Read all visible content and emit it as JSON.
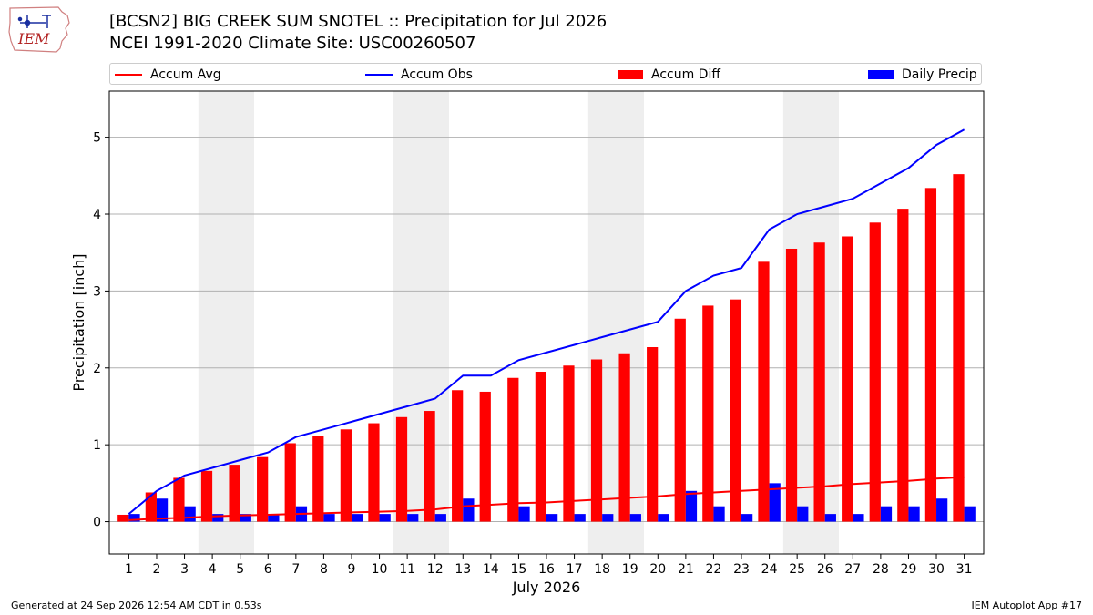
{
  "header": {
    "title": "[BCSN2] BIG CREEK SUM SNOTEL :: Precipitation for Jul 2026",
    "subtitle": "NCEI 1991-2020 Climate Site: USC00260507",
    "logo_text": "IEM"
  },
  "legend": [
    {
      "label": "Accum Avg",
      "kind": "line",
      "color": "#ff0000"
    },
    {
      "label": "Accum Obs",
      "kind": "line",
      "color": "#0000ff"
    },
    {
      "label": "Accum Diff",
      "kind": "bar",
      "color": "#ff0000"
    },
    {
      "label": "Daily Precip",
      "kind": "bar",
      "color": "#0000ff"
    }
  ],
  "chart_data": {
    "type": "bar",
    "xlabel": "July 2026",
    "ylabel": "Precipitation [inch]",
    "ylim": [
      -0.42,
      5.6
    ],
    "yticks": [
      0,
      1,
      2,
      3,
      4,
      5
    ],
    "categories": [
      "1",
      "2",
      "3",
      "4",
      "5",
      "6",
      "7",
      "8",
      "9",
      "10",
      "11",
      "12",
      "13",
      "14",
      "15",
      "16",
      "17",
      "18",
      "19",
      "20",
      "21",
      "22",
      "23",
      "24",
      "25",
      "26",
      "27",
      "28",
      "29",
      "30",
      "31"
    ],
    "weekend_shading_days": [
      [
        4,
        5
      ],
      [
        11,
        12
      ],
      [
        18,
        19
      ],
      [
        25,
        26
      ]
    ],
    "grid": "horizontal",
    "series": [
      {
        "name": "Accum Avg",
        "kind": "line",
        "color": "#ff0000",
        "values": [
          0.02,
          0.04,
          0.05,
          0.07,
          0.08,
          0.09,
          0.1,
          0.11,
          0.12,
          0.13,
          0.14,
          0.16,
          0.2,
          0.22,
          0.24,
          0.25,
          0.27,
          0.29,
          0.31,
          0.33,
          0.36,
          0.38,
          0.4,
          0.42,
          0.44,
          0.46,
          0.49,
          0.51,
          0.53,
          0.56,
          0.58
        ]
      },
      {
        "name": "Accum Obs",
        "kind": "line",
        "color": "#0000ff",
        "values": [
          0.1,
          0.4,
          0.6,
          0.7,
          0.8,
          0.9,
          1.1,
          1.2,
          1.3,
          1.4,
          1.5,
          1.6,
          1.9,
          1.9,
          2.1,
          2.2,
          2.3,
          2.4,
          2.5,
          2.6,
          3.0,
          3.2,
          3.3,
          3.8,
          4.0,
          4.1,
          4.2,
          4.4,
          4.6,
          4.9,
          5.1
        ]
      },
      {
        "name": "Accum Diff",
        "kind": "bar",
        "color": "#ff0000",
        "values": [
          0.09,
          0.38,
          0.57,
          0.66,
          0.74,
          0.84,
          1.02,
          1.11,
          1.2,
          1.28,
          1.36,
          1.44,
          1.71,
          1.69,
          1.87,
          1.95,
          2.03,
          2.11,
          2.19,
          2.27,
          2.64,
          2.81,
          2.89,
          3.38,
          3.55,
          3.63,
          3.71,
          3.89,
          4.07,
          4.34,
          4.52
        ]
      },
      {
        "name": "Daily Precip",
        "kind": "bar",
        "color": "#0000ff",
        "values": [
          0.1,
          0.3,
          0.2,
          0.1,
          0.1,
          0.1,
          0.2,
          0.1,
          0.1,
          0.1,
          0.1,
          0.1,
          0.3,
          0.0,
          0.2,
          0.1,
          0.1,
          0.1,
          0.1,
          0.1,
          0.4,
          0.2,
          0.1,
          0.5,
          0.2,
          0.1,
          0.1,
          0.2,
          0.2,
          0.3,
          0.2
        ]
      }
    ]
  },
  "footer": {
    "generated": "Generated at 24 Sep 2026 12:54 AM CDT in 0.53s",
    "app": "IEM Autoplot App #17"
  }
}
